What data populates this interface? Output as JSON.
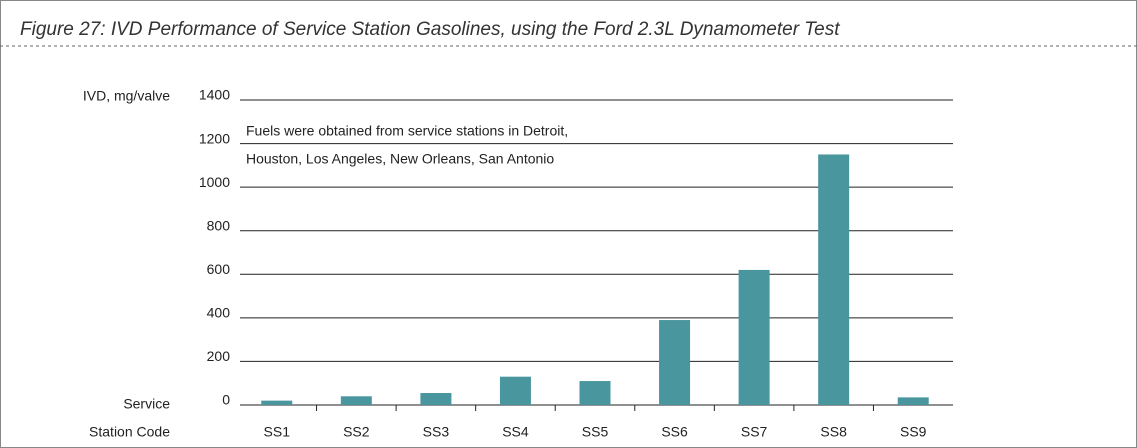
{
  "chart_data": {
    "type": "bar",
    "title": "Figure 27: IVD Performance of Service Station Gasolines, using the Ford 2.3L Dynamometer Test",
    "y_label": "IVD, mg/valve",
    "x_label": [
      "Service",
      "Station Code"
    ],
    "annotation": [
      "Fuels were obtained from service stations in Detroit,",
      "Houston, Los Angeles, New Orleans, San Antonio"
    ],
    "categories": [
      "SS1",
      "SS2",
      "SS3",
      "SS4",
      "SS5",
      "SS6",
      "SS7",
      "SS8",
      "SS9"
    ],
    "values": [
      20,
      40,
      55,
      130,
      110,
      390,
      620,
      1150,
      35
    ],
    "color": "#4a969e",
    "ylim": [
      0,
      1400
    ],
    "yticks": [
      0,
      200,
      400,
      600,
      800,
      1000,
      1200,
      1400
    ],
    "grid": true
  }
}
